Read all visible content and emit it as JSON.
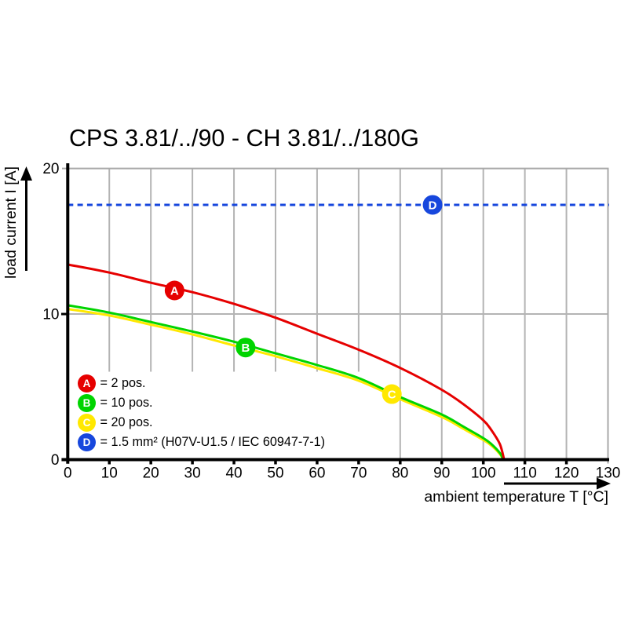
{
  "chart_data": {
    "type": "line",
    "title": "CPS 3.81/../90 - CH 3.81/../180G",
    "xlabel": "ambient temperature T [°C]",
    "ylabel": "load current I [A]",
    "xlim": [
      0,
      130
    ],
    "ylim": [
      0,
      20
    ],
    "x_ticks": [
      0,
      10,
      20,
      30,
      40,
      50,
      60,
      70,
      80,
      90,
      100,
      110,
      120,
      130
    ],
    "y_ticks": [
      0,
      10,
      20
    ],
    "grid": "vertical gridlines every 10 C, horizontal gridline at 10 A, frame at top and right",
    "legend_position": "lower left",
    "colors": {
      "red": "#e60000",
      "green": "#00d400",
      "yellow": "#ffe800",
      "blue": "#1747dd",
      "grid": "#b4b4b4",
      "frame": "#a9a9a9",
      "axis": "#000000"
    },
    "series": [
      {
        "name": "A",
        "label": "2 pos.",
        "color": "#e60000",
        "style": "solid",
        "points": [
          [
            0,
            13.4
          ],
          [
            10,
            12.85
          ],
          [
            20,
            12.15
          ],
          [
            30,
            11.5
          ],
          [
            40,
            10.7
          ],
          [
            50,
            9.75
          ],
          [
            60,
            8.65
          ],
          [
            70,
            7.55
          ],
          [
            80,
            6.3
          ],
          [
            90,
            4.8
          ],
          [
            95,
            3.85
          ],
          [
            100,
            2.7
          ],
          [
            102,
            2.0
          ],
          [
            104,
            1.05
          ],
          [
            105,
            0
          ]
        ],
        "marker": {
          "letter": "A",
          "t": 25.7,
          "i": 11.62
        }
      },
      {
        "name": "B",
        "label": "10 pos.",
        "color": "#00d400",
        "style": "solid",
        "points": [
          [
            0,
            10.6
          ],
          [
            10,
            10.1
          ],
          [
            20,
            9.45
          ],
          [
            30,
            8.8
          ],
          [
            40,
            8.1
          ],
          [
            50,
            7.3
          ],
          [
            60,
            6.5
          ],
          [
            70,
            5.6
          ],
          [
            80,
            4.3
          ],
          [
            90,
            3.1
          ],
          [
            95,
            2.3
          ],
          [
            100,
            1.48
          ],
          [
            102,
            1.05
          ],
          [
            104,
            0.45
          ],
          [
            104.8,
            0
          ]
        ],
        "marker": {
          "letter": "B",
          "t": 42.8,
          "i": 7.7
        }
      },
      {
        "name": "C",
        "label": "20 pos.",
        "color": "#ffe800",
        "style": "solid",
        "points": [
          [
            0,
            10.35
          ],
          [
            10,
            9.9
          ],
          [
            20,
            9.27
          ],
          [
            30,
            8.6
          ],
          [
            40,
            7.84
          ],
          [
            50,
            7.1
          ],
          [
            60,
            6.28
          ],
          [
            70,
            5.42
          ],
          [
            80,
            4.15
          ],
          [
            90,
            2.93
          ],
          [
            95,
            2.15
          ],
          [
            100,
            1.35
          ],
          [
            102,
            0.95
          ],
          [
            104,
            0.38
          ],
          [
            104.8,
            0
          ]
        ],
        "marker": {
          "letter": "C",
          "t": 78.0,
          "i": 4.5
        }
      },
      {
        "name": "D",
        "label": "1.5 mm² (H07V-U1.5 / IEC 60947-7-1)",
        "color": "#1747dd",
        "style": "dashed",
        "points": [
          [
            0,
            17.5
          ],
          [
            130,
            17.5
          ]
        ],
        "marker": {
          "letter": "D",
          "t": 87.8,
          "i": 17.5
        }
      }
    ],
    "legend": [
      {
        "letter": "A",
        "color": "#e60000",
        "label": "= 2 pos."
      },
      {
        "letter": "B",
        "color": "#00d400",
        "label": "= 10 pos."
      },
      {
        "letter": "C",
        "color": "#ffe800",
        "label": "= 20 pos."
      },
      {
        "letter": "D",
        "color": "#1747dd",
        "label": "= 1.5 mm² (H07V-U1.5 / IEC 60947-7-1)"
      }
    ]
  }
}
